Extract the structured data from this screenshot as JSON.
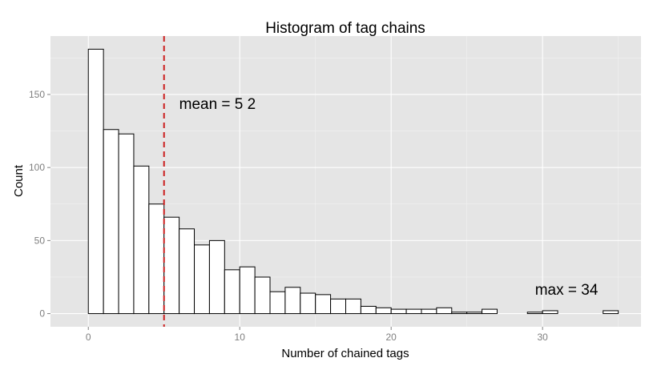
{
  "chart_data": {
    "type": "bar",
    "title": "Histogram of tag chains",
    "xlabel": "Number of chained tags",
    "ylabel": "Count",
    "xlim": [
      -2.5,
      36.5
    ],
    "ylim": [
      -9,
      190
    ],
    "x_ticks": [
      0,
      10,
      20,
      30
    ],
    "y_ticks": [
      0,
      50,
      100,
      150
    ],
    "bin_width": 1,
    "bins": [
      {
        "x": -1,
        "count": 0
      },
      {
        "x": 0,
        "count": 181
      },
      {
        "x": 1,
        "count": 126
      },
      {
        "x": 2,
        "count": 123
      },
      {
        "x": 3,
        "count": 101
      },
      {
        "x": 4,
        "count": 75
      },
      {
        "x": 5,
        "count": 66
      },
      {
        "x": 6,
        "count": 58
      },
      {
        "x": 7,
        "count": 47
      },
      {
        "x": 8,
        "count": 50
      },
      {
        "x": 9,
        "count": 30
      },
      {
        "x": 10,
        "count": 32
      },
      {
        "x": 11,
        "count": 25
      },
      {
        "x": 12,
        "count": 15
      },
      {
        "x": 13,
        "count": 18
      },
      {
        "x": 14,
        "count": 14
      },
      {
        "x": 15,
        "count": 13
      },
      {
        "x": 16,
        "count": 10
      },
      {
        "x": 17,
        "count": 10
      },
      {
        "x": 18,
        "count": 5
      },
      {
        "x": 19,
        "count": 4
      },
      {
        "x": 20,
        "count": 3
      },
      {
        "x": 21,
        "count": 3
      },
      {
        "x": 22,
        "count": 3
      },
      {
        "x": 23,
        "count": 4
      },
      {
        "x": 24,
        "count": 1
      },
      {
        "x": 25,
        "count": 1
      },
      {
        "x": 26,
        "count": 3
      },
      {
        "x": 27,
        "count": 0
      },
      {
        "x": 28,
        "count": 0
      },
      {
        "x": 29,
        "count": 1
      },
      {
        "x": 30,
        "count": 2
      },
      {
        "x": 31,
        "count": 0
      },
      {
        "x": 32,
        "count": 0
      },
      {
        "x": 33,
        "count": 0
      },
      {
        "x": 34,
        "count": 2
      }
    ],
    "mean_line": {
      "x": 5,
      "color": "#cc1f1f"
    },
    "annotations": [
      {
        "text": "mean = 5 2",
        "x": 6,
        "y": 140
      },
      {
        "text": "max = 34",
        "x": 29.5,
        "y": 13
      }
    ],
    "grid": true,
    "legend": "none"
  }
}
